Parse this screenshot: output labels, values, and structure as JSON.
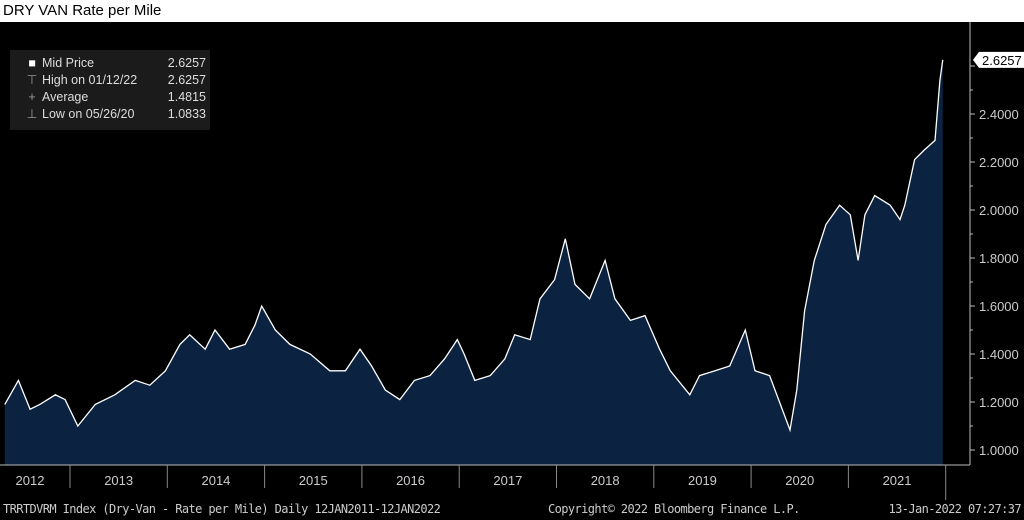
{
  "title": "DRY VAN Rate per Mile",
  "legend": [
    {
      "icon": "square-icon",
      "label": "Mid Price",
      "value": "2.6257"
    },
    {
      "icon": "high-marker-icon",
      "label": "High on 01/12/22",
      "value": "2.6257"
    },
    {
      "icon": "average-marker-icon",
      "label": "Average",
      "value": "1.4815"
    },
    {
      "icon": "low-marker-icon",
      "label": "Low on 05/26/20",
      "value": "1.0833"
    }
  ],
  "footer": {
    "ticker": "TRRTDVRM Index (Dry-Van - Rate per Mile)  Daily 12JAN2011-12JAN2022",
    "copyright": "Copyright© 2022 Bloomberg Finance L.P.",
    "timestamp": "13-Jan-2022 07:27:37"
  },
  "colors": {
    "fill": "#0b2240",
    "line": "#ffffff",
    "background": "#000000"
  },
  "chart_data": {
    "type": "area",
    "title": "DRY VAN Rate per Mile",
    "xlabel": "",
    "ylabel": "",
    "xlim": [
      2012.33,
      2022.05
    ],
    "ylim": [
      0.94,
      2.78
    ],
    "yticks": [
      1.0,
      1.2,
      1.4,
      1.6,
      1.8,
      2.0,
      2.2,
      2.4
    ],
    "ytick_labels": [
      "1.0000",
      "1.2000",
      "1.4000",
      "1.6000",
      "1.8000",
      "2.0000",
      "2.2000",
      "2.4000"
    ],
    "xtick_labels": [
      "2012",
      "2013",
      "2014",
      "2015",
      "2016",
      "2017",
      "2018",
      "2019",
      "2020",
      "2021"
    ],
    "last_value_label": "2.6257",
    "series": [
      {
        "name": "Mid Price",
        "x": [
          2012.33,
          2012.47,
          2012.59,
          2012.69,
          2012.85,
          2012.95,
          2013.08,
          2013.26,
          2013.46,
          2013.67,
          2013.82,
          2013.98,
          2014.13,
          2014.23,
          2014.39,
          2014.49,
          2014.64,
          2014.8,
          2014.9,
          2014.97,
          2015.11,
          2015.26,
          2015.47,
          2015.67,
          2015.83,
          2015.98,
          2016.1,
          2016.24,
          2016.39,
          2016.54,
          2016.7,
          2016.85,
          2016.98,
          2017.05,
          2017.16,
          2017.32,
          2017.47,
          2017.57,
          2017.73,
          2017.83,
          2017.98,
          2018.09,
          2018.19,
          2018.34,
          2018.5,
          2018.6,
          2018.76,
          2018.91,
          2019.06,
          2019.17,
          2019.37,
          2019.47,
          2019.63,
          2019.78,
          2019.94,
          2020.04,
          2020.19,
          2020.4,
          2020.47,
          2020.55,
          2020.65,
          2020.77,
          2020.91,
          2021.02,
          2021.1,
          2021.17,
          2021.27,
          2021.43,
          2021.53,
          2021.58,
          2021.68,
          2021.78,
          2021.89,
          2021.94,
          2021.97
        ],
        "y": [
          1.19,
          1.29,
          1.17,
          1.19,
          1.23,
          1.21,
          1.1,
          1.19,
          1.23,
          1.29,
          1.27,
          1.33,
          1.44,
          1.48,
          1.42,
          1.5,
          1.42,
          1.44,
          1.52,
          1.6,
          1.5,
          1.44,
          1.4,
          1.33,
          1.33,
          1.42,
          1.35,
          1.25,
          1.21,
          1.29,
          1.31,
          1.38,
          1.46,
          1.4,
          1.29,
          1.31,
          1.38,
          1.48,
          1.46,
          1.63,
          1.71,
          1.88,
          1.69,
          1.63,
          1.79,
          1.63,
          1.54,
          1.56,
          1.42,
          1.33,
          1.23,
          1.31,
          1.33,
          1.35,
          1.5,
          1.33,
          1.31,
          1.0833,
          1.25,
          1.58,
          1.79,
          1.94,
          2.02,
          1.98,
          1.79,
          1.98,
          2.06,
          2.02,
          1.96,
          2.02,
          2.21,
          2.25,
          2.29,
          2.54,
          2.6257
        ]
      }
    ]
  }
}
